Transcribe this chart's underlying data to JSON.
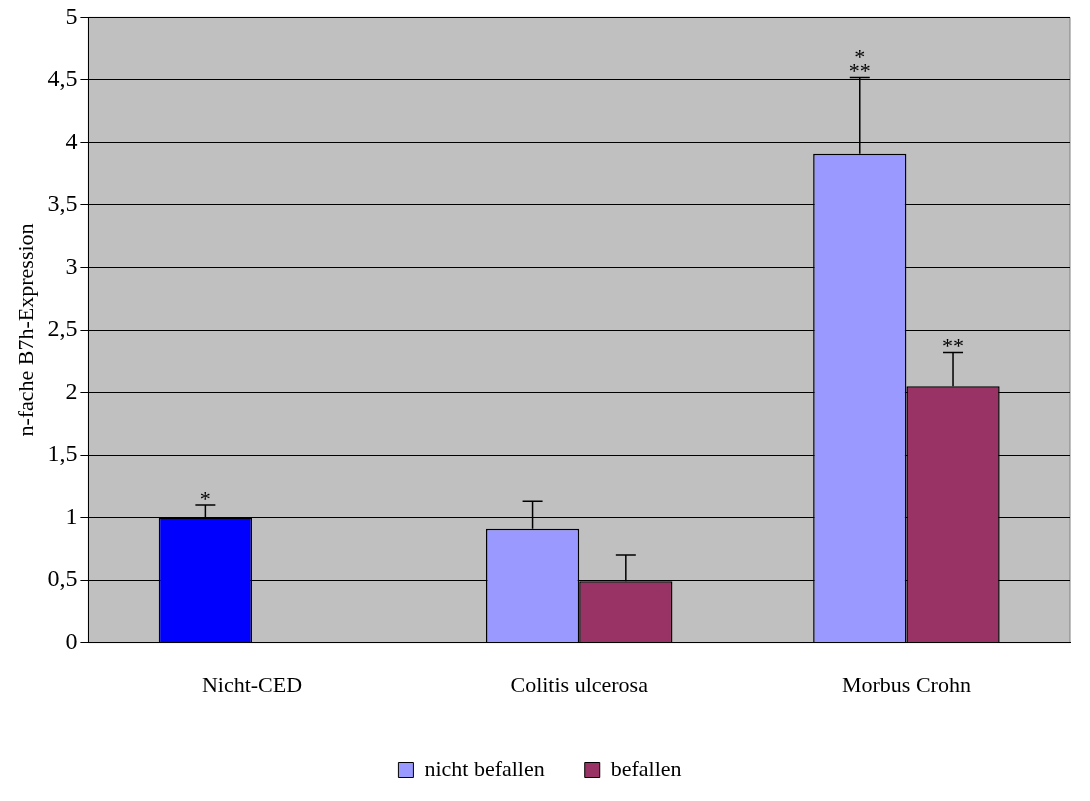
{
  "chart_data": {
    "type": "bar",
    "ylabel": "n-fache B7h-Expression",
    "categories": [
      "Nicht-CED",
      "Colitis ulcerosa",
      "Morbus Crohn"
    ],
    "series": [
      {
        "name": "nicht befallen",
        "color": "#9999ff",
        "colors": [
          "#0000ff",
          "#9999ff",
          "#9999ff"
        ],
        "values": [
          1.0,
          0.91,
          3.91
        ],
        "errors": [
          [
            1.0,
            1.1
          ],
          [
            0.91,
            1.13
          ],
          [
            3.91,
            4.52
          ]
        ]
      },
      {
        "name": "befallen",
        "color": "#993366",
        "values": [
          null,
          0.49,
          2.05
        ],
        "errors": [
          null,
          [
            0.49,
            0.7
          ],
          [
            2.05,
            2.32
          ]
        ]
      }
    ],
    "ylim": [
      0,
      5
    ],
    "yticks": [
      0,
      {
        "value": 0.5,
        "label": "0,5"
      },
      1,
      {
        "value": 1.5,
        "label": "1,5"
      },
      2,
      {
        "value": 2.5,
        "label": "2,5"
      },
      3,
      {
        "value": 3.5,
        "label": "3,5"
      },
      4,
      {
        "value": 4.5,
        "label": "4,5"
      },
      5
    ],
    "grid": "y",
    "legend": "bottom",
    "annotations": [
      {
        "text": "*",
        "x": "Nicht-CED",
        "y": 1.0
      },
      "*",
      "**",
      {
        "text": "**",
        "x": "Morbus Crohn",
        "y": 2.05
      }
    ]
  }
}
